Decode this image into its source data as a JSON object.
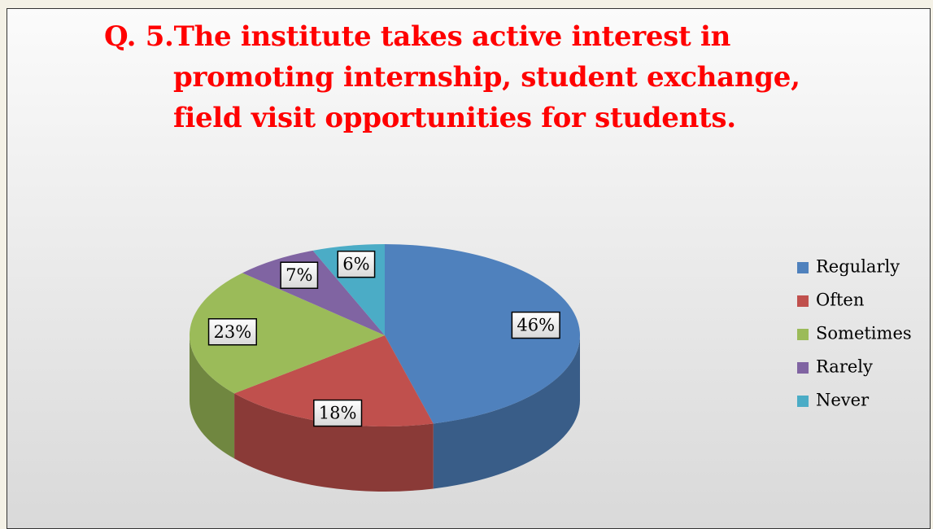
{
  "chart_data": {
    "type": "pie3d",
    "title": "Q. 5.The institute takes active interest in\npromoting internship, student exchange,\nfield visit opportunities for students.",
    "categories": [
      "Regularly",
      "Often",
      "Sometimes",
      "Rarely",
      "Never"
    ],
    "values": [
      46,
      18,
      23,
      7,
      6
    ],
    "value_labels": [
      "46%",
      "18%",
      "23%",
      "7%",
      "6%"
    ],
    "colors": [
      "#4f81bd",
      "#c0504d",
      "#9bbb59",
      "#8064a2",
      "#4bacc6"
    ],
    "legend": "right"
  }
}
